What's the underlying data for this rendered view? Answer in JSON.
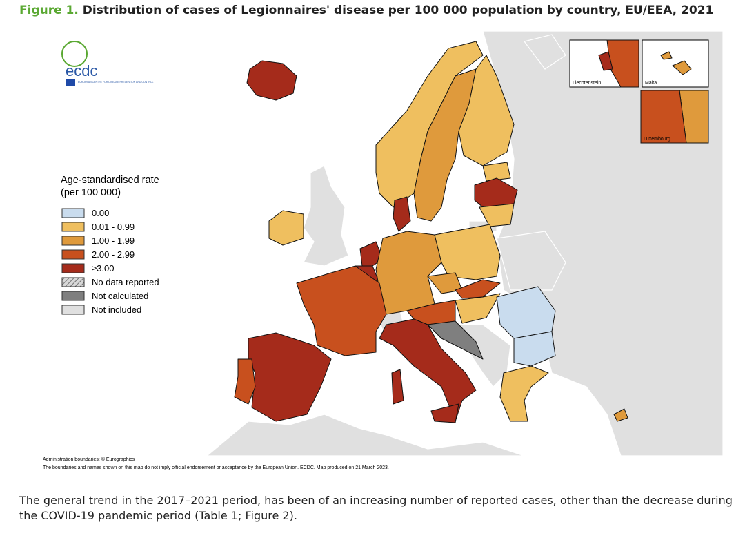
{
  "figure": {
    "label": "Figure 1.",
    "title": "Distribution of cases of Legionnaires' disease per 100 000 population by country, EU/EEA, 2021"
  },
  "logo": {
    "name": "ecdc",
    "subtitle": "EUROPEAN CENTRE FOR DISEASE PREVENTION AND CONTROL"
  },
  "legend": {
    "title": [
      "Age-standardised rate",
      "(per 100 000)"
    ],
    "items": [
      "0.00",
      "0.01 - 0.99",
      "1.00 - 1.99",
      "2.00 - 2.99",
      "≥3.00",
      "No data reported",
      "Not calculated",
      "Not included"
    ]
  },
  "insets": [
    "Liechtenstein",
    "Malta",
    "Luxembourg"
  ],
  "footnotes": [
    "Administration boundaries: © Eurographics",
    "The boundaries and names shown on this map do not imply official endorsement or acceptance by the European Union. ECDC. Map produced on 21 March 2023."
  ],
  "body": "The general trend in the 2017–2021 period, has been of an increasing number of reported cases, other than the decrease during the COVID-19 pandemic period (Table 1; Figure 2)."
}
